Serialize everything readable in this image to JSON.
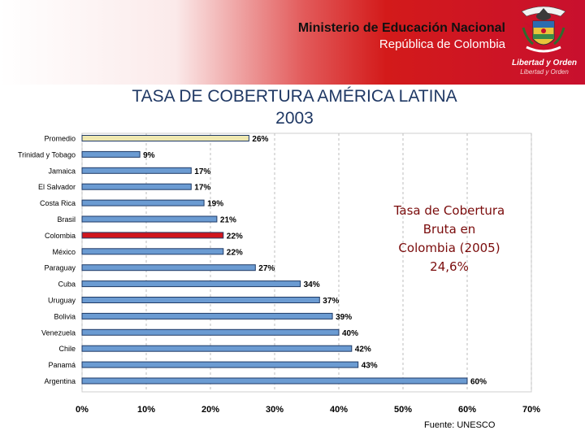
{
  "header": {
    "ministry": "Ministerio de Educación Nacional",
    "republic": "República de Colombia",
    "motto": "Libertad y Orden",
    "motto_sub": "Libertad y Orden",
    "logo": "colombia-coat-of-arms-icon"
  },
  "colors": {
    "bar_default": "#6b9bd2",
    "bar_highlight": "#d0161e",
    "bar_average": "#efe8b0",
    "title": "#1f3864",
    "callout": "#7a0b0b"
  },
  "callout": {
    "lines": [
      "Tasa de Cobertura",
      "Bruta  en",
      "Colombia (2005)",
      "24,6%"
    ]
  },
  "source": "Fuente: UNESCO",
  "chart_data": {
    "type": "bar",
    "orientation": "horizontal",
    "title": "TASA DE COBERTURA AMÉRICA LATINA",
    "subtitle": "2003",
    "categories": [
      "Promedio",
      "Trinidad y Tobago",
      "Jamaica",
      "El Salvador",
      "Costa Rica",
      "Brasil",
      "Colombia",
      "México",
      "Paraguay",
      "Cuba",
      "Uruguay",
      "Bolivia",
      "Venezuela",
      "Chile",
      "Panamá",
      "Argentina"
    ],
    "values": [
      26,
      9,
      17,
      17,
      19,
      21,
      22,
      22,
      27,
      34,
      37,
      39,
      40,
      42,
      43,
      60
    ],
    "value_labels": [
      "26%",
      "9%",
      "17%",
      "17%",
      "19%",
      "21%",
      "22%",
      "22%",
      "27%",
      "34%",
      "37%",
      "39%",
      "40%",
      "42%",
      "43%",
      "60%"
    ],
    "highlight": "Colombia",
    "average": "Promedio",
    "xlim": [
      0,
      70
    ],
    "xticks": [
      0,
      10,
      20,
      30,
      40,
      50,
      60,
      70
    ],
    "xtick_labels": [
      "0%",
      "10%",
      "20%",
      "30%",
      "40%",
      "50%",
      "60%",
      "70%"
    ],
    "grid": "vertical dashed",
    "legend": "none"
  }
}
